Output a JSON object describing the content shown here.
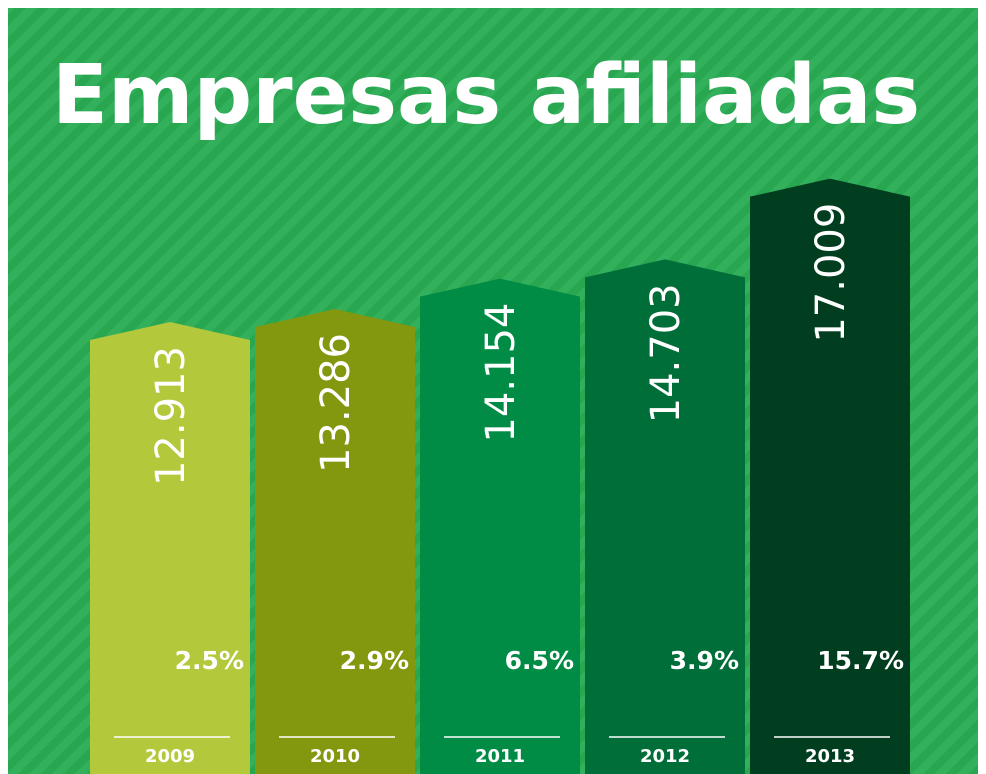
{
  "chart_data": {
    "type": "bar",
    "title": "Empresas afiliadas",
    "categories": [
      "2009",
      "2010",
      "2011",
      "2012",
      "2013"
    ],
    "values": [
      12913,
      13286,
      14154,
      14703,
      17009
    ],
    "value_labels": [
      "12.913",
      "13.286",
      "14.154",
      "14.703",
      "17.009"
    ],
    "growth": [
      2.5,
      2.9,
      6.5,
      3.9,
      15.7
    ],
    "growth_labels": [
      "2.5%",
      "2.9%",
      "6.5%",
      "3.9%",
      "15.7%"
    ],
    "colors": [
      "#b3c93b",
      "#83970f",
      "#008c45",
      "#006e38",
      "#003e1f"
    ],
    "ylim": [
      0,
      22000
    ]
  }
}
